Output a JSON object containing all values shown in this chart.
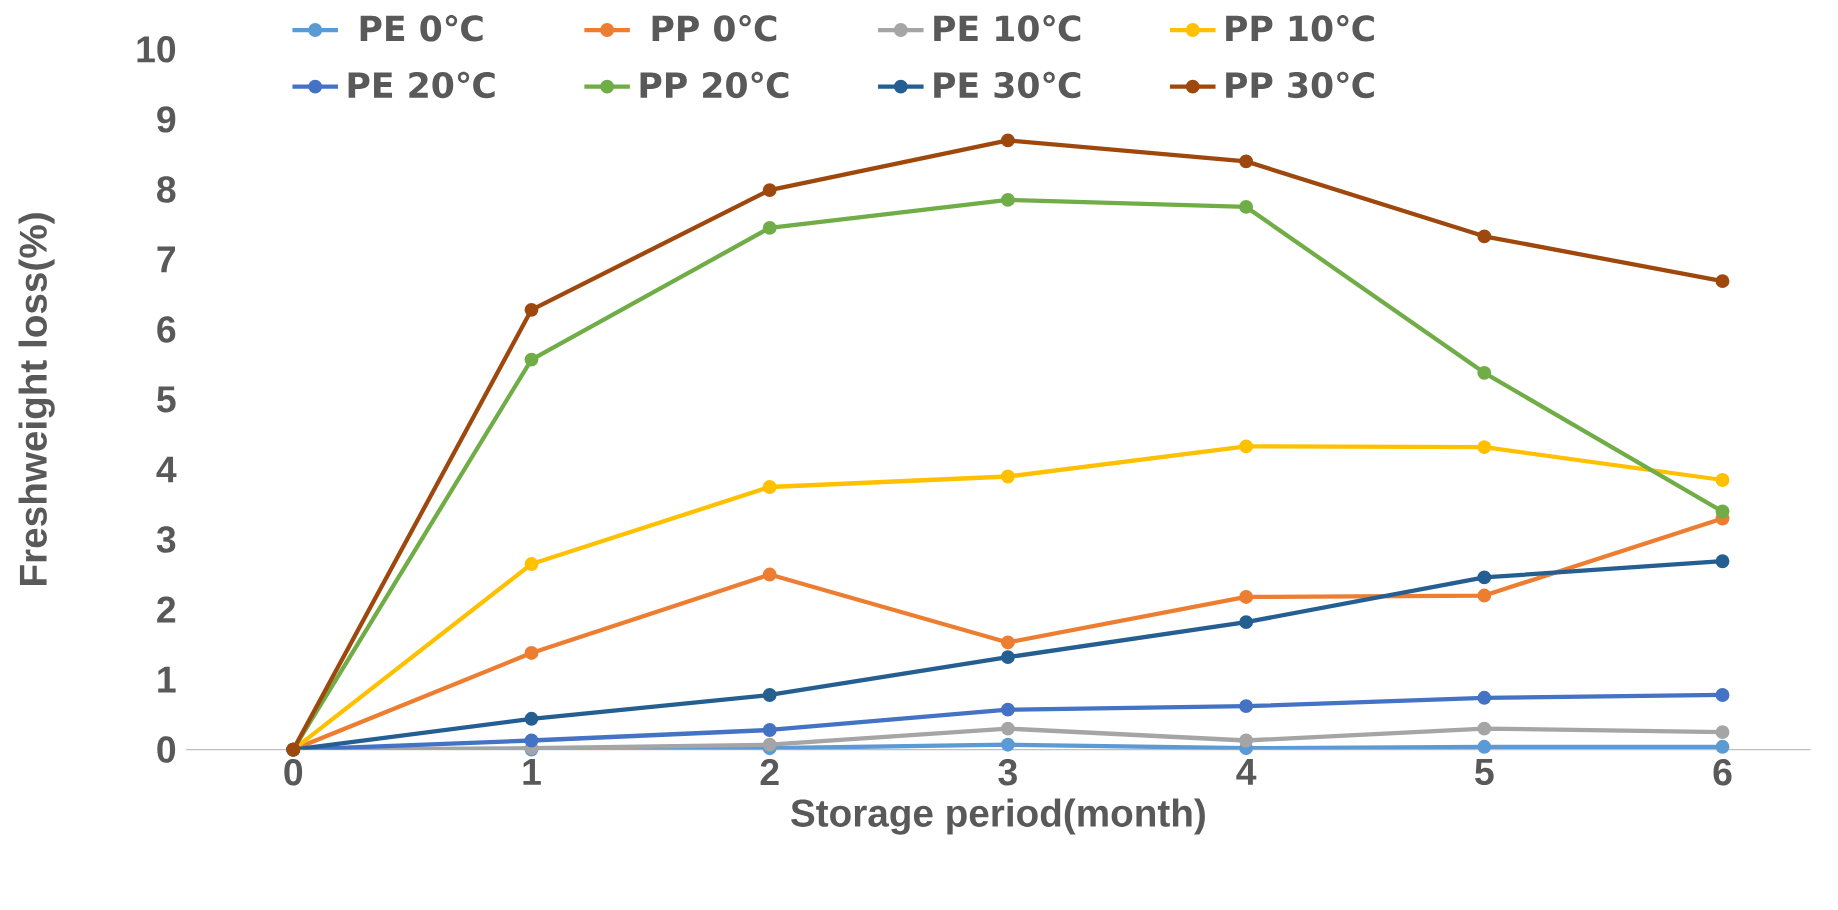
{
  "chart_data": {
    "type": "line",
    "xlabel": "Storage period(month)",
    "ylabel": "Freshweight loss(%)",
    "categories": [
      "0",
      "1",
      "2",
      "3",
      "4",
      "5",
      "6"
    ],
    "ylim": [
      0,
      10
    ],
    "yticks": [
      0,
      1,
      2,
      3,
      4,
      5,
      6,
      7,
      8,
      9,
      10
    ],
    "legend": "top",
    "grid": false,
    "marker": "circle",
    "line_style": "solid",
    "series": [
      {
        "name": "PE 0℃",
        "color": "#5b9bd5",
        "values": [
          0,
          0.0,
          0.02,
          0.07,
          0.02,
          0.04,
          0.04
        ]
      },
      {
        "name": "PP 0℃",
        "color": "#ed7d31",
        "values": [
          0,
          1.38,
          2.5,
          1.53,
          2.18,
          2.2,
          3.3
        ]
      },
      {
        "name": "PE 10℃",
        "color": "#a5a5a5",
        "values": [
          0,
          0.02,
          0.07,
          0.3,
          0.13,
          0.3,
          0.25
        ]
      },
      {
        "name": "PP 10℃",
        "color": "#ffc000",
        "values": [
          0,
          2.65,
          3.75,
          3.9,
          4.33,
          4.32,
          3.85
        ]
      },
      {
        "name": "PE 20℃",
        "color": "#4472c4",
        "values": [
          0,
          0.13,
          0.28,
          0.57,
          0.62,
          0.74,
          0.78
        ]
      },
      {
        "name": "PP 20℃",
        "color": "#70ad47",
        "values": [
          0,
          5.57,
          7.45,
          7.85,
          7.75,
          5.38,
          3.4
        ]
      },
      {
        "name": "PE 30℃",
        "color": "#255e91",
        "values": [
          0,
          0.44,
          0.78,
          1.32,
          1.82,
          2.46,
          2.69
        ]
      },
      {
        "name": "PP 30℃",
        "color": "#9e480e",
        "values": [
          0,
          6.28,
          7.99,
          8.7,
          8.4,
          7.33,
          6.69
        ]
      }
    ]
  }
}
